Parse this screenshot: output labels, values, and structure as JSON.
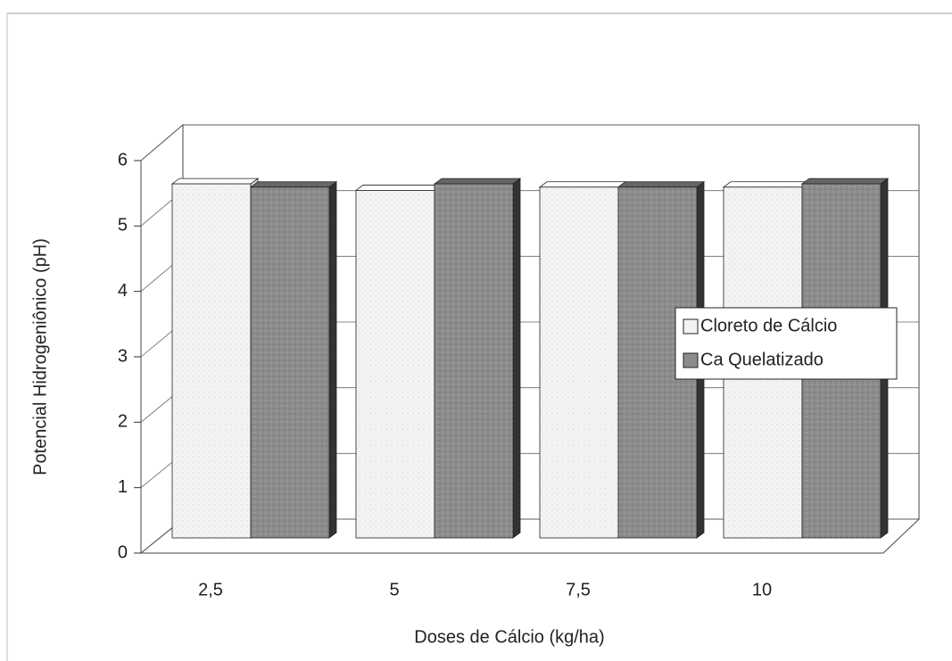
{
  "chart_data": {
    "type": "bar3d",
    "x_label": "Doses de Cálcio (kg/ha)",
    "y_label": "Potencial Hidrogeniônico (pH)",
    "categories": [
      "2,5",
      "5",
      "7,5",
      "10"
    ],
    "series": [
      {
        "name": "Cloreto de Cálcio",
        "color": "#f3f3f3",
        "values": [
          5.4,
          5.3,
          5.35,
          5.35
        ]
      },
      {
        "name": "Ca Quelatizado",
        "color": "#8c8c8c",
        "values": [
          5.35,
          5.4,
          5.35,
          5.4
        ]
      }
    ],
    "ylim": [
      0,
      6
    ],
    "yticks": [
      0,
      1,
      2,
      3,
      4,
      5,
      6
    ],
    "grid": true,
    "legend": "right"
  }
}
